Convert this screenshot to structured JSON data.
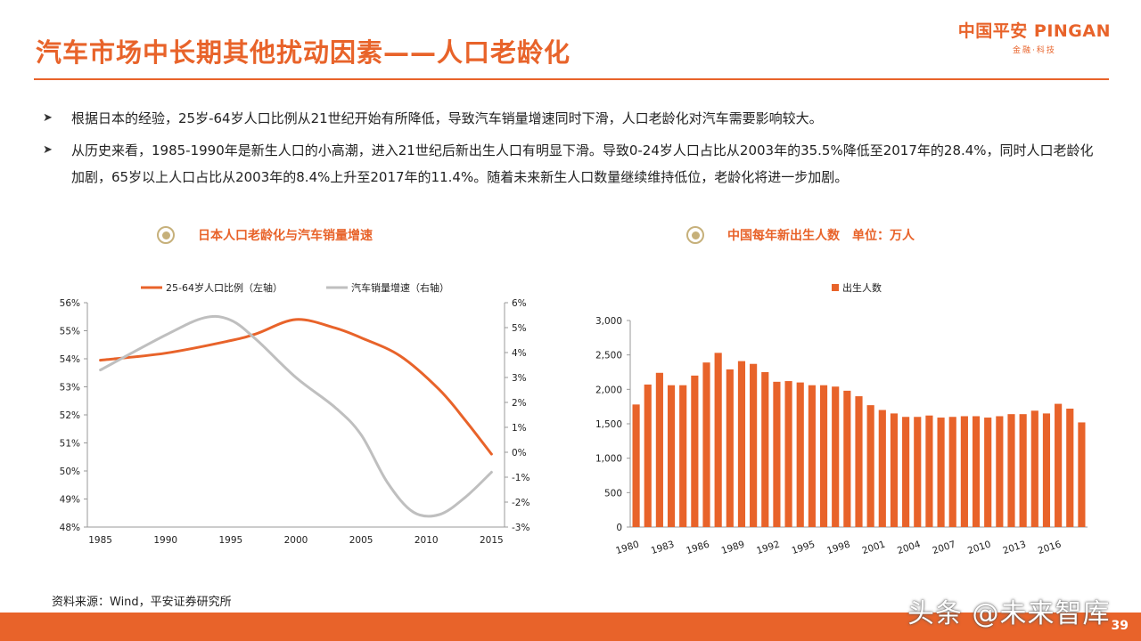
{
  "page": {
    "title": "汽车市场中长期其他扰动因素——人口老龄化",
    "logo_main": "中国平安 PINGAN",
    "logo_sub": "金融·科技",
    "bullets": [
      "根据日本的经验，25岁-64岁人口比例从21世纪开始有所降低，导致汽车销量增速同时下滑，人口老龄化对汽车需要影响较大。",
      "从历史来看，1985-1990年是新生人口的小高潮，进入21世纪后新出生人口有明显下滑。导致0-24岁人口占比从2003年的35.5%降低至2017年的28.4%，同时人口老龄化加剧，65岁以上人口占比从2003年的8.4%上升至2017年的11.4%。随着未来新生人口数量继续维持低位，老龄化将进一步加剧。"
    ],
    "left_panel_title": "日本人口老龄化与汽车销量增速",
    "right_panel_title": "中国每年新出生人数　单位：万人",
    "source": "资料来源：Wind，平安证券研究所",
    "watermark": "头条 @未来智库",
    "page_number": "39",
    "colors": {
      "accent": "#e8632a",
      "grey_series": "#bfbfbf",
      "icon_gold": "#c6b07a"
    }
  },
  "chart_data": [
    {
      "type": "line",
      "title": "日本人口老龄化与汽车销量增速",
      "x": [
        1985,
        1990,
        1995,
        2000,
        2005,
        2010,
        2015
      ],
      "x_tick_labels": [
        "1985",
        "1990",
        "1995",
        "2000",
        "2005",
        "2010",
        "2015"
      ],
      "series": [
        {
          "name": "25-64岁人口比例（左轴）",
          "axis": "left",
          "color": "#e8632a",
          "points": [
            [
              1985,
              53.95
            ],
            [
              1990,
              54.2
            ],
            [
              1995,
              54.65
            ],
            [
              1997,
              54.9
            ],
            [
              2000,
              55.4
            ],
            [
              2003,
              55.1
            ],
            [
              2005,
              54.75
            ],
            [
              2008,
              54.1
            ],
            [
              2011,
              52.9
            ],
            [
              2013,
              51.8
            ],
            [
              2015,
              50.6
            ]
          ]
        },
        {
          "name": "汽车销量增速（右轴）",
          "axis": "right",
          "color": "#bfbfbf",
          "points": [
            [
              1985,
              3.3
            ],
            [
              1990,
              4.7
            ],
            [
              1993,
              5.4
            ],
            [
              1995,
              5.3
            ],
            [
              1997,
              4.5
            ],
            [
              2000,
              3.0
            ],
            [
              2003,
              1.8
            ],
            [
              2005,
              0.7
            ],
            [
              2007,
              -1.2
            ],
            [
              2009,
              -2.4
            ],
            [
              2011,
              -2.5
            ],
            [
              2013,
              -1.8
            ],
            [
              2015,
              -0.8
            ]
          ]
        }
      ],
      "left_axis": {
        "ylim": [
          48,
          56
        ],
        "ticks": [
          "56%",
          "55%",
          "54%",
          "53%",
          "52%",
          "51%",
          "50%",
          "49%",
          "48%"
        ]
      },
      "right_axis": {
        "ylim": [
          -3,
          6
        ],
        "ticks": [
          "6%",
          "5%",
          "4%",
          "3%",
          "2%",
          "1%",
          "0%",
          "-1%",
          "-2%",
          "-3%"
        ]
      },
      "legend": "top",
      "grid": false
    },
    {
      "type": "bar",
      "title": "中国每年新出生人数",
      "unit": "万人",
      "series_name": "出生人数",
      "color": "#e8632a",
      "categories": [
        "1980",
        "1981",
        "1982",
        "1983",
        "1984",
        "1985",
        "1986",
        "1987",
        "1988",
        "1989",
        "1990",
        "1991",
        "1992",
        "1993",
        "1994",
        "1995",
        "1996",
        "1997",
        "1998",
        "1999",
        "2000",
        "2001",
        "2002",
        "2003",
        "2004",
        "2005",
        "2006",
        "2007",
        "2008",
        "2009",
        "2010",
        "2011",
        "2012",
        "2013",
        "2014",
        "2015",
        "2016",
        "2017",
        "2018"
      ],
      "values": [
        1780,
        2070,
        2240,
        2060,
        2060,
        2200,
        2390,
        2530,
        2290,
        2410,
        2370,
        2250,
        2110,
        2120,
        2100,
        2060,
        2060,
        2040,
        1980,
        1900,
        1770,
        1700,
        1650,
        1600,
        1600,
        1620,
        1590,
        1600,
        1610,
        1610,
        1590,
        1610,
        1640,
        1640,
        1690,
        1650,
        1790,
        1720,
        1520
      ],
      "x_tick_labels": [
        "1980",
        "1983",
        "1986",
        "1989",
        "1992",
        "1995",
        "1998",
        "2001",
        "2004",
        "2007",
        "2010",
        "2013",
        "2016"
      ],
      "y_ticks": [
        "0",
        "500",
        "1,000",
        "1,500",
        "2,000",
        "2,500",
        "3,000"
      ],
      "ylim": [
        0,
        3000
      ],
      "legend": "top-left",
      "grid": false
    }
  ]
}
